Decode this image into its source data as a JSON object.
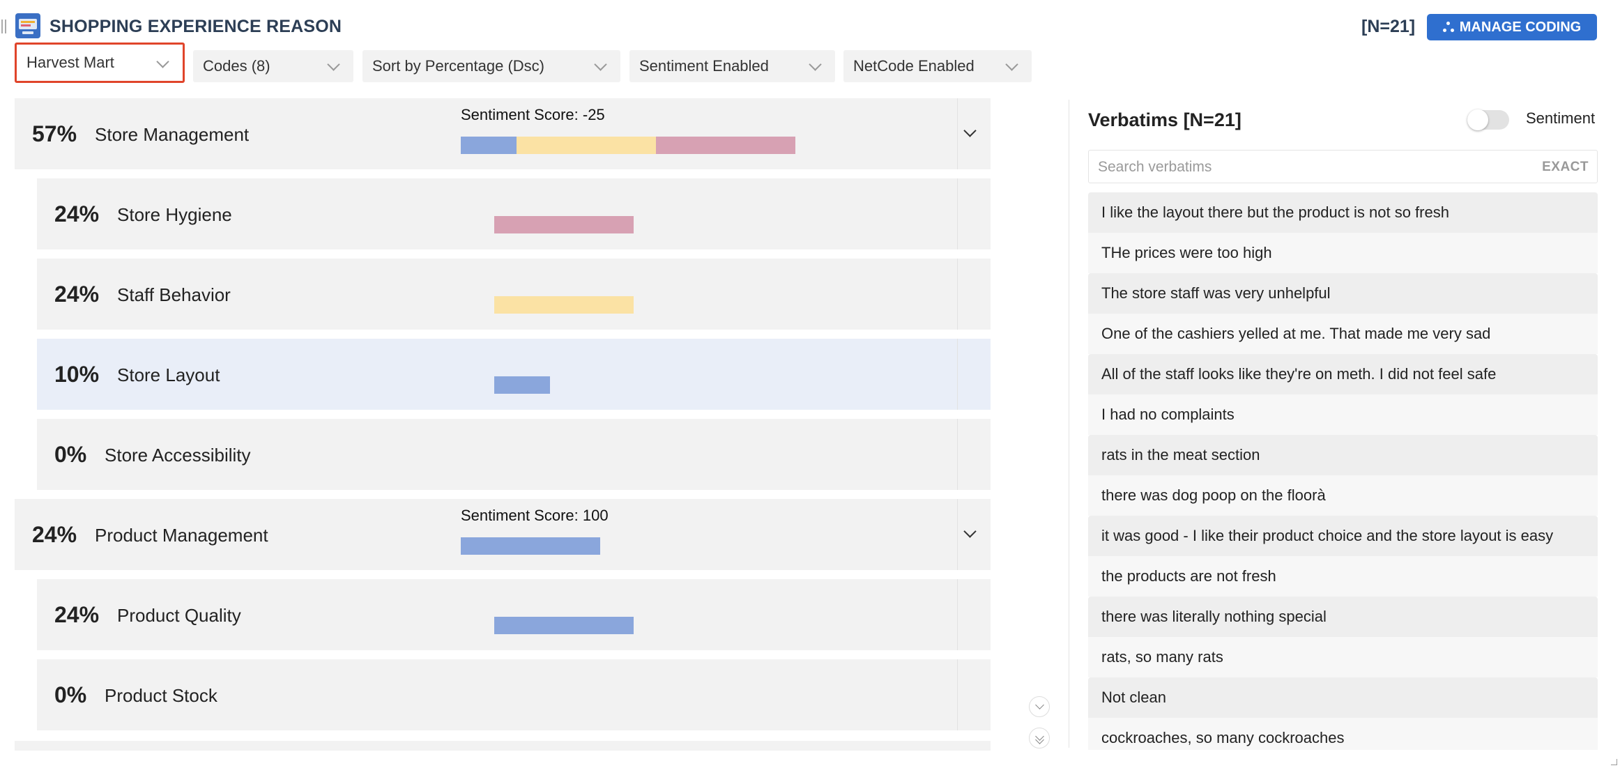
{
  "header": {
    "title": "SHOPPING EXPERIENCE REASON",
    "count": "[N=21]",
    "manage_button": "MANAGE CODING"
  },
  "filters": {
    "store": "Harvest Mart",
    "codes": "Codes (8)",
    "sort": "Sort by Percentage (Dsc)",
    "sentiment": "Sentiment Enabled",
    "netcode": "NetCode Enabled"
  },
  "colors": {
    "positive": "#8aa6dc",
    "neutral": "#fbe2a4",
    "negative": "#d7a1b3",
    "accent": "#2f6fcf",
    "highlight_border": "#e0452b"
  },
  "codes": [
    {
      "pct": "57%",
      "label": "Store Management",
      "level": "net",
      "sentiment_label": "Sentiment Score: -25",
      "bar": {
        "positive": 0.08,
        "neutral": 0.2,
        "negative": 0.2
      }
    },
    {
      "pct": "24%",
      "label": "Store Hygiene",
      "level": "sub",
      "bar": {
        "negative": 0.2
      }
    },
    {
      "pct": "24%",
      "label": "Staff Behavior",
      "level": "sub",
      "bar": {
        "neutral": 0.2
      }
    },
    {
      "pct": "10%",
      "label": "Store Layout",
      "level": "sub",
      "selected": true,
      "bar": {
        "positive": 0.08
      }
    },
    {
      "pct": "0%",
      "label": "Store Accessibility",
      "level": "sub"
    },
    {
      "pct": "24%",
      "label": "Product Management",
      "level": "net",
      "sentiment_label": "Sentiment Score: 100",
      "bar": {
        "positive": 0.2
      }
    },
    {
      "pct": "24%",
      "label": "Product Quality",
      "level": "sub",
      "bar": {
        "positive": 0.2
      }
    },
    {
      "pct": "0%",
      "label": "Product Stock",
      "level": "sub"
    }
  ],
  "verbatims": {
    "title": "Verbatims [N=21]",
    "toggle_label": "Sentiment",
    "search_placeholder": "Search verbatims",
    "exact_label": "EXACT",
    "items": [
      "I like the layout there but the product is not so fresh",
      "THe prices were too high",
      "The store staff was very unhelpful",
      "One of the cashiers yelled at me. That made me very sad",
      "All of the staff looks like they're on meth. I did not feel safe",
      "I had no complaints",
      "rats in the meat section",
      "there was dog poop on the floorà",
      "it was good - I like their product choice and the store layout is easy",
      "the products are not fresh",
      "there was literally nothing special",
      "rats, so many rats",
      "Not clean",
      "cockroaches, so many cockroaches"
    ]
  }
}
